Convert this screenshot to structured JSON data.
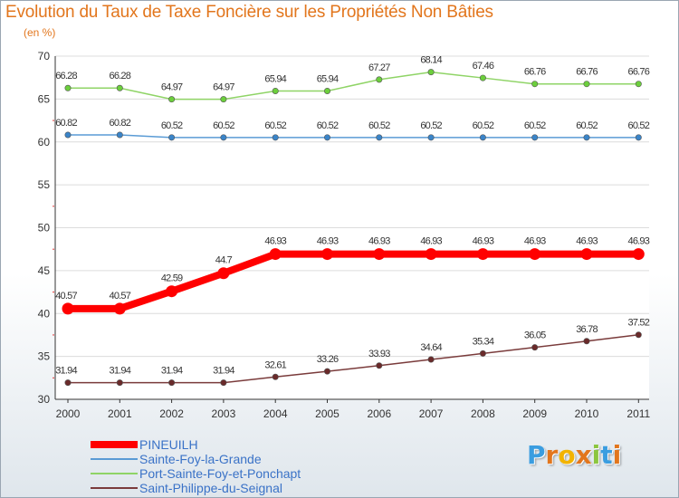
{
  "header": {
    "title": "Evolution du Taux de Taxe Foncière sur les Propriétés Non Bâties",
    "unit": "(en %)"
  },
  "logo": {
    "letters": [
      "P",
      "r",
      "o",
      "x",
      "i",
      "t",
      "i"
    ],
    "colors": [
      "#3a9de0",
      "#e2761d",
      "#f2b300",
      "#e2761d",
      "#8cc63f",
      "#3a9de0",
      "#e2761d"
    ]
  },
  "chart_data": {
    "type": "line",
    "title": "Evolution du Taux de Taxe Foncière sur les Propriétés Non Bâties",
    "ylabel": "(en %)",
    "x": [
      "2000",
      "2001",
      "2002",
      "2003",
      "2004",
      "2005",
      "2006",
      "2007",
      "2008",
      "2009",
      "2010",
      "2011"
    ],
    "ylim": [
      30,
      70
    ],
    "yticks": [
      30,
      35,
      40,
      45,
      50,
      55,
      60,
      65,
      70
    ],
    "grid": "horizontal",
    "legend_position": "bottom-left",
    "series": [
      {
        "name": "PINEUILH",
        "color": "#ff0000",
        "values": [
          40.57,
          40.57,
          42.59,
          44.7,
          46.93,
          46.93,
          46.93,
          46.93,
          46.93,
          46.93,
          46.93,
          46.93
        ],
        "labels": [
          "40.57",
          "40.57",
          "42.59",
          "44.7",
          "46.93",
          "46.93",
          "46.93",
          "46.93",
          "46.93",
          "46.93",
          "46.93",
          "46.93"
        ]
      },
      {
        "name": "Sainte-Foy-la-Grande",
        "color": "#5a9bd5",
        "values": [
          60.82,
          60.82,
          60.52,
          60.52,
          60.52,
          60.52,
          60.52,
          60.52,
          60.52,
          60.52,
          60.52,
          60.52
        ],
        "labels": [
          "60.82",
          "60.82",
          "60.52",
          "60.52",
          "60.52",
          "60.52",
          "60.52",
          "60.52",
          "60.52",
          "60.52",
          "60.52",
          "60.52"
        ]
      },
      {
        "name": "Port-Sainte-Foy-et-Ponchapt",
        "color": "#8fd466",
        "values": [
          66.28,
          66.28,
          64.97,
          64.97,
          65.94,
          65.94,
          67.27,
          68.14,
          67.46,
          66.76,
          66.76,
          66.76
        ],
        "labels": [
          "66.28",
          "66.28",
          "64.97",
          "64.97",
          "65.94",
          "65.94",
          "67.27",
          "68.14",
          "67.46",
          "66.76",
          "66.76",
          "66.76"
        ]
      },
      {
        "name": "Saint-Philippe-du-Seignal",
        "color": "#7a3b3b",
        "values": [
          31.94,
          31.94,
          31.94,
          31.94,
          32.61,
          33.26,
          33.93,
          34.64,
          35.34,
          36.05,
          36.78,
          37.52
        ],
        "labels": [
          "31.94",
          "31.94",
          "31.94",
          "31.94",
          "32.61",
          "33.26",
          "33.93",
          "34.64",
          "35.34",
          "36.05",
          "36.78",
          "37.52"
        ]
      }
    ]
  }
}
